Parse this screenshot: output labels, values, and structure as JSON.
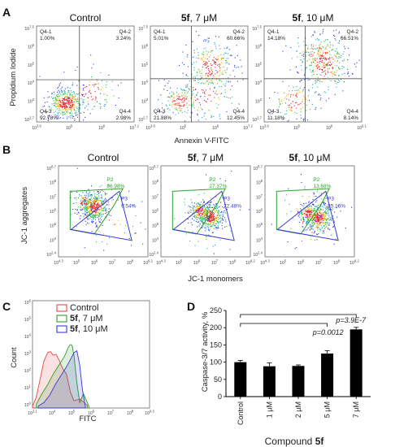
{
  "panels": {
    "A": {
      "label": "A",
      "xlabel": "Annexin V-FITC",
      "ylabel": "Propidium Iodide",
      "xticks": [
        "10^3.6",
        "10^5",
        "10^6",
        "10^7.2"
      ],
      "last_xtick": "10^6.1",
      "yticks": [
        "10^7.5",
        "10^6",
        "10^5",
        "10^4",
        "10^3",
        "10^2.7"
      ],
      "plots": [
        {
          "title_bold": "",
          "title": "Control",
          "q41": "Q4-1",
          "q41v": "1.00%",
          "q42": "Q4-2",
          "q42v": "3.24%",
          "q43": "Q4-3",
          "q43v": "92.78%",
          "q44": "Q4-4",
          "q44v": "2.98%"
        },
        {
          "title_bold": "5f",
          "title": ", 7 μM",
          "q41": "Q4-1",
          "q41v": "5.01%",
          "q42": "Q4-2",
          "q42v": "60.66%",
          "q43": "Q4-3",
          "q43v": "21.88%",
          "q44": "Q4-4",
          "q44v": "12.45%"
        },
        {
          "title_bold": "5f",
          "title": ", 10 μM",
          "q41": "Q4-1",
          "q41v": "14.18%",
          "q42": "Q4-2",
          "q42v": "66.51%",
          "q43": "Q4-3",
          "q43v": "11.18%",
          "q44": "Q4-4",
          "q44v": "8.14%"
        }
      ]
    },
    "B": {
      "label": "B",
      "xlabel": "JC-1 monomers",
      "ylabel": "JC-1 aggregates",
      "xticks": [
        "10^4.3",
        "10^5",
        "10^6",
        "10^7",
        "10^8",
        "10^9.2"
      ],
      "yticks": [
        "10^8.7",
        "10^8",
        "10^7",
        "10^6",
        "10^5",
        "10^4",
        "10^2.4"
      ],
      "plots": [
        {
          "title_bold": "",
          "title": "Control",
          "p2": "P2",
          "p2v": "86.98%",
          "p3": "P3",
          "p3v": "9.54%"
        },
        {
          "title_bold": "5f",
          "title": ", 7 μM",
          "p2": "P2",
          "p2v": "27.37%",
          "p3": "P3",
          "p3v": "72.48%"
        },
        {
          "title_bold": "5f",
          "title": ", 10 μM",
          "p2": "P2",
          "p2v": "13.68%",
          "p3": "P3",
          "p3v": "85.16%"
        }
      ]
    },
    "C": {
      "label": "C",
      "xlabel": "FITC",
      "ylabel": "Count",
      "xticks": [
        "10^3.1",
        "10^4",
        "10^5",
        "10^6",
        "10^7",
        "10^8",
        "10^9.3"
      ],
      "yticks": [
        "10^6",
        "10^5",
        "10^4",
        "10^3",
        "10^2",
        "10^1",
        "10^0"
      ],
      "legend": [
        {
          "bold": "",
          "text": "Control",
          "color": "#e8474b"
        },
        {
          "bold": "5f",
          "text": ", 7 μM",
          "color": "#2ca02c"
        },
        {
          "bold": "5f",
          "text": ", 10 μM",
          "color": "#3a3ad6"
        }
      ]
    },
    "D": {
      "label": "D",
      "ylabel": "Caspase-3/7 activity, %",
      "xlabel_prefix": "Compound ",
      "xlabel_bold": "5f",
      "sig1": "p=0.0012",
      "sig2": "p=3.9E-7"
    }
  },
  "chart_data": [
    {
      "type": "bar",
      "title": "",
      "categories": [
        "Control",
        "1 μM",
        "2 μM",
        "5 μM",
        "7 μM"
      ],
      "values": [
        100,
        88,
        89,
        125,
        195
      ],
      "errors": [
        5,
        10,
        3,
        8,
        6
      ],
      "ylabel": "Caspase-3/7 activity, %",
      "xlabel": "Compound 5f",
      "ylim": [
        0,
        250
      ],
      "yticks": [
        0,
        50,
        100,
        150,
        200,
        250
      ],
      "bar_color": "#000000"
    },
    {
      "type": "area",
      "title": "",
      "xlabel": "FITC",
      "ylabel": "Count",
      "x_log_range": [
        3.1,
        9.3
      ],
      "y_log_range": [
        0,
        6
      ],
      "series": [
        {
          "name": "Control",
          "color": "#e8474b",
          "x": [
            3.1,
            3.3,
            3.5,
            3.7,
            3.9,
            4.05,
            4.2,
            4.35,
            4.5,
            4.7,
            4.9,
            5.1,
            5.3,
            5.6,
            6.0
          ],
          "y": [
            0.1,
            0.6,
            1.6,
            2.6,
            3.1,
            3.15,
            2.95,
            3.0,
            2.7,
            2.2,
            1.9,
            0.9,
            0.4,
            0.5,
            0.15
          ]
        },
        {
          "name": "5f, 7 μM",
          "color": "#2ca02c",
          "x": [
            3.3,
            3.6,
            3.9,
            4.2,
            4.5,
            4.8,
            5.0,
            5.1,
            5.2,
            5.3,
            5.45,
            5.6,
            5.8,
            6.1
          ],
          "y": [
            0.2,
            0.8,
            1.3,
            1.9,
            2.4,
            2.9,
            3.4,
            3.55,
            3.5,
            2.9,
            1.4,
            0.3,
            0.8,
            0.05
          ]
        },
        {
          "name": "5f, 10 μM",
          "color": "#3a3ad6",
          "x": [
            3.4,
            3.7,
            4.0,
            4.3,
            4.6,
            4.9,
            5.1,
            5.3,
            5.45,
            5.6,
            5.75,
            5.9
          ],
          "y": [
            0.1,
            0.3,
            0.7,
            1.3,
            1.8,
            2.3,
            2.7,
            3.1,
            3.2,
            2.4,
            1.0,
            0.1
          ]
        }
      ]
    }
  ]
}
